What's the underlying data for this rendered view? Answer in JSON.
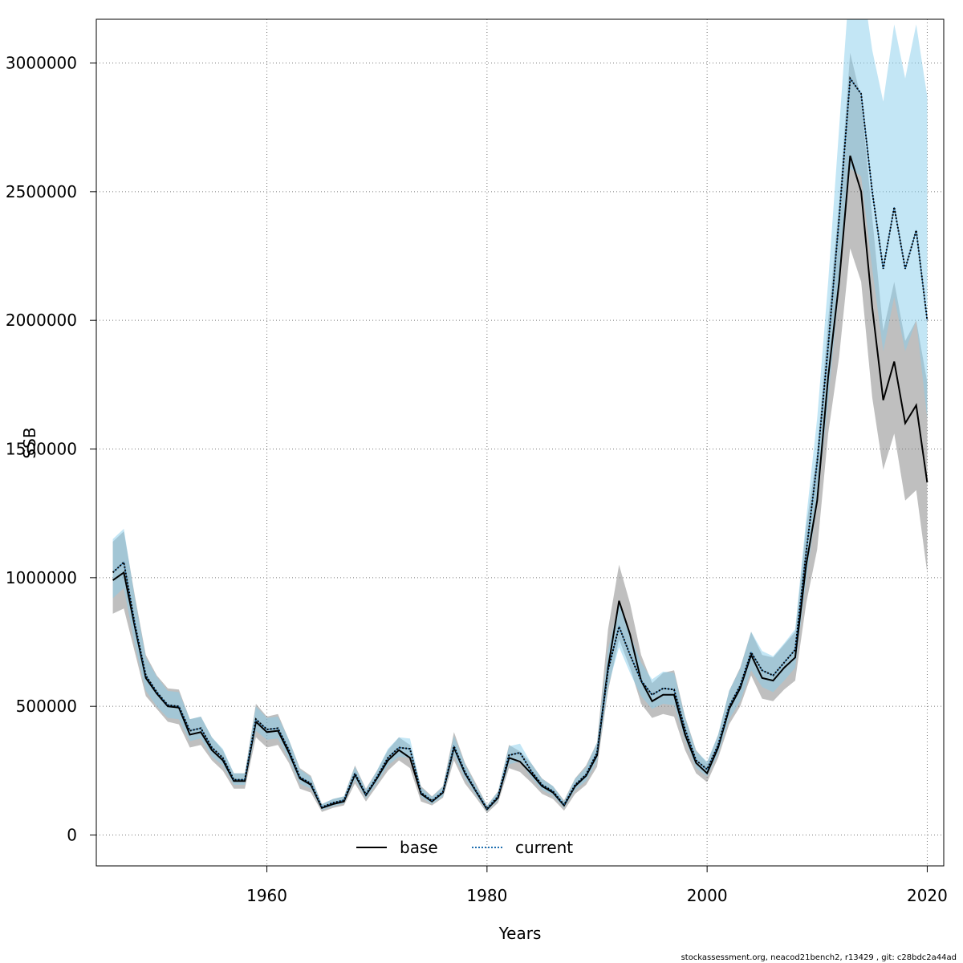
{
  "chart_data": {
    "type": "line",
    "xlabel": "Years",
    "ylabel": "SSB",
    "xlim": [
      1944.5,
      2021.5
    ],
    "ylim": [
      -120000,
      3170000
    ],
    "x_ticks": [
      1960,
      1980,
      2000,
      2020
    ],
    "x_tick_labels": [
      "1960",
      "1980",
      "2000",
      "2020"
    ],
    "y_ticks": [
      0,
      500000,
      1000000,
      1500000,
      2000000,
      2500000,
      3000000
    ],
    "y_tick_labels": [
      "0",
      "500000",
      "1000000",
      "1500000",
      "2000000",
      "2500000",
      "3000000"
    ],
    "grid": true,
    "legend_placement": "bottom-center",
    "years": [
      1946,
      1947,
      1948,
      1949,
      1950,
      1951,
      1952,
      1953,
      1954,
      1955,
      1956,
      1957,
      1958,
      1959,
      1960,
      1961,
      1962,
      1963,
      1964,
      1965,
      1966,
      1967,
      1968,
      1969,
      1970,
      1971,
      1972,
      1973,
      1974,
      1975,
      1976,
      1977,
      1978,
      1979,
      1980,
      1981,
      1982,
      1983,
      1984,
      1985,
      1986,
      1987,
      1988,
      1989,
      1990,
      1991,
      1992,
      1993,
      1994,
      1995,
      1996,
      1997,
      1998,
      1999,
      2000,
      2001,
      2002,
      2003,
      2004,
      2005,
      2006,
      2007,
      2008,
      2009,
      2010,
      2011,
      2012,
      2013,
      2014,
      2015,
      2016,
      2017,
      2018,
      2019,
      2020
    ],
    "series": [
      {
        "name": "base",
        "color": "#000000",
        "line": "solid",
        "band_color": "#808080",
        "values": [
          990000,
          1020000,
          810000,
          610000,
          550000,
          500000,
          495000,
          390000,
          400000,
          330000,
          290000,
          210000,
          210000,
          440000,
          400000,
          405000,
          320000,
          220000,
          195000,
          105000,
          120000,
          130000,
          235000,
          155000,
          220000,
          290000,
          330000,
          300000,
          160000,
          130000,
          165000,
          340000,
          240000,
          170000,
          100000,
          145000,
          300000,
          285000,
          240000,
          190000,
          165000,
          115000,
          190000,
          230000,
          310000,
          650000,
          910000,
          780000,
          600000,
          520000,
          545000,
          545000,
          390000,
          280000,
          240000,
          340000,
          490000,
          570000,
          700000,
          610000,
          600000,
          650000,
          690000,
          1050000,
          1300000,
          1780000,
          2150000,
          2640000,
          2500000,
          2050000,
          1690000,
          1840000,
          1600000,
          1670000,
          1370000
        ],
        "lower": [
          860000,
          880000,
          710000,
          540000,
          490000,
          440000,
          430000,
          340000,
          350000,
          290000,
          250000,
          180000,
          180000,
          380000,
          340000,
          350000,
          280000,
          180000,
          165000,
          90000,
          105000,
          115000,
          200000,
          130000,
          190000,
          250000,
          290000,
          260000,
          130000,
          115000,
          145000,
          290000,
          200000,
          145000,
          85000,
          125000,
          260000,
          245000,
          205000,
          160000,
          140000,
          95000,
          160000,
          195000,
          265000,
          560000,
          760000,
          650000,
          510000,
          455000,
          470000,
          460000,
          330000,
          240000,
          205000,
          300000,
          430000,
          500000,
          620000,
          530000,
          520000,
          565000,
          600000,
          900000,
          1110000,
          1560000,
          1860000,
          2280000,
          2150000,
          1700000,
          1420000,
          1560000,
          1300000,
          1340000,
          1020000
        ],
        "upper": [
          1140000,
          1180000,
          930000,
          700000,
          620000,
          570000,
          565000,
          450000,
          460000,
          380000,
          330000,
          240000,
          240000,
          510000,
          460000,
          470000,
          370000,
          260000,
          230000,
          120000,
          140000,
          150000,
          270000,
          180000,
          250000,
          330000,
          380000,
          350000,
          190000,
          150000,
          190000,
          400000,
          280000,
          200000,
          115000,
          170000,
          350000,
          325000,
          280000,
          220000,
          190000,
          135000,
          220000,
          270000,
          360000,
          800000,
          1050000,
          900000,
          700000,
          590000,
          630000,
          640000,
          460000,
          330000,
          280000,
          390000,
          560000,
          650000,
          790000,
          700000,
          690000,
          740000,
          790000,
          1200000,
          1490000,
          2000000,
          2460000,
          3040000,
          2860000,
          2400000,
          1960000,
          2150000,
          1920000,
          2000000,
          1760000
        ]
      },
      {
        "name": "current",
        "color": "#1f6fb0",
        "line": "dotted",
        "band_color": "#87ceeb",
        "values": [
          1020000,
          1060000,
          820000,
          620000,
          555000,
          505000,
          500000,
          405000,
          415000,
          340000,
          300000,
          215000,
          215000,
          450000,
          410000,
          415000,
          330000,
          225000,
          200000,
          108000,
          125000,
          135000,
          240000,
          158000,
          225000,
          300000,
          340000,
          335000,
          165000,
          133000,
          168000,
          345000,
          245000,
          172000,
          102000,
          150000,
          310000,
          320000,
          250000,
          195000,
          170000,
          117000,
          195000,
          235000,
          320000,
          640000,
          810000,
          700000,
          600000,
          545000,
          570000,
          565000,
          410000,
          290000,
          255000,
          350000,
          500000,
          580000,
          710000,
          640000,
          620000,
          670000,
          720000,
          1100000,
          1450000,
          1900000,
          2400000,
          2940000,
          2880000,
          2500000,
          2200000,
          2440000,
          2200000,
          2350000,
          2000000
        ],
        "lower": [
          920000,
          960000,
          740000,
          560000,
          500000,
          455000,
          450000,
          365000,
          375000,
          305000,
          270000,
          195000,
          195000,
          405000,
          370000,
          375000,
          295000,
          200000,
          180000,
          97000,
          112000,
          122000,
          215000,
          142000,
          202000,
          270000,
          305000,
          300000,
          148000,
          120000,
          150000,
          310000,
          220000,
          155000,
          92000,
          135000,
          275000,
          285000,
          225000,
          175000,
          153000,
          105000,
          175000,
          210000,
          288000,
          575000,
          730000,
          630000,
          540000,
          490000,
          510000,
          505000,
          370000,
          260000,
          228000,
          315000,
          450000,
          520000,
          640000,
          575000,
          555000,
          600000,
          650000,
          990000,
          1290000,
          1690000,
          2130000,
          2590000,
          2560000,
          2200000,
          1880000,
          2090000,
          1880000,
          2000000,
          1620000
        ],
        "upper": [
          1150000,
          1190000,
          920000,
          690000,
          615000,
          560000,
          555000,
          450000,
          460000,
          380000,
          335000,
          240000,
          240000,
          500000,
          455000,
          460000,
          370000,
          255000,
          225000,
          120000,
          140000,
          150000,
          265000,
          176000,
          250000,
          335000,
          380000,
          375000,
          185000,
          148000,
          188000,
          385000,
          275000,
          192000,
          114000,
          168000,
          345000,
          355000,
          280000,
          218000,
          190000,
          130000,
          218000,
          262000,
          360000,
          720000,
          900000,
          780000,
          670000,
          605000,
          635000,
          630000,
          455000,
          325000,
          285000,
          390000,
          560000,
          645000,
          790000,
          715000,
          695000,
          745000,
          800000,
          1230000,
          1620000,
          2150000,
          2750000,
          3350000,
          3350000,
          3050000,
          2850000,
          3150000,
          2940000,
          3150000,
          2870000
        ]
      }
    ],
    "footer": "stockassessment.org, neacod21bench2, r13429 , git: c28bdc2a44ad"
  }
}
